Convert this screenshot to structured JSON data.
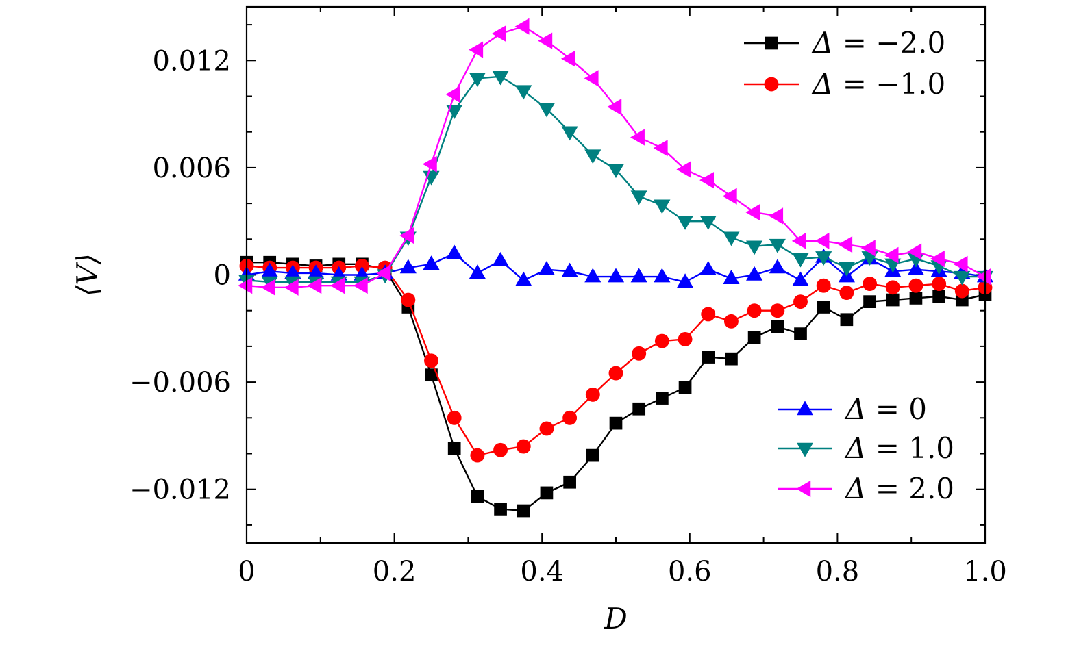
{
  "chart_data": {
    "type": "line",
    "title": "",
    "xlabel": "D",
    "ylabel": "⟨V⟩",
    "xlim": [
      0,
      1.0
    ],
    "ylim": [
      -0.015,
      0.015
    ],
    "xticks": [
      {
        "value": 0,
        "label": "0"
      },
      {
        "value": 0.2,
        "label": "0.2"
      },
      {
        "value": 0.4,
        "label": "0.4"
      },
      {
        "value": 0.6,
        "label": "0.6"
      },
      {
        "value": 0.8,
        "label": "0.8"
      },
      {
        "value": 1.0,
        "label": "1.0"
      }
    ],
    "yticks": [
      {
        "value": 0.012,
        "label": "0.012"
      },
      {
        "value": 0.006,
        "label": "0.006"
      },
      {
        "value": 0,
        "label": "0"
      },
      {
        "value": -0.006,
        "label": "−0.006"
      },
      {
        "value": -0.012,
        "label": "−0.012"
      }
    ],
    "grid": false,
    "legend_groups": [
      {
        "position": "top-right",
        "series": [
          0,
          1
        ]
      },
      {
        "position": "bottom-right",
        "series": [
          2,
          3,
          4
        ]
      }
    ],
    "x": [
      0,
      0.03125,
      0.0625,
      0.09375,
      0.125,
      0.15625,
      0.1875,
      0.21875,
      0.25,
      0.28125,
      0.3125,
      0.34375,
      0.375,
      0.40625,
      0.4375,
      0.46875,
      0.5,
      0.53125,
      0.5625,
      0.59375,
      0.625,
      0.65625,
      0.6875,
      0.71875,
      0.75,
      0.78125,
      0.8125,
      0.84375,
      0.875,
      0.90625,
      0.9375,
      0.96875,
      1.0
    ],
    "series": [
      {
        "name": "Δ = −2.0",
        "legend_sym": "Δ",
        "legend_eq": "= −2.0",
        "color": "#000000",
        "marker": "square",
        "values": [
          0.0007,
          0.0007,
          0.0006,
          0.0005,
          0.0006,
          0.0006,
          0.0003,
          -0.0018,
          -0.0056,
          -0.0097,
          -0.0124,
          -0.0131,
          -0.0132,
          -0.0122,
          -0.0116,
          -0.0101,
          -0.0083,
          -0.0075,
          -0.0069,
          -0.0063,
          -0.0046,
          -0.0047,
          -0.0035,
          -0.0029,
          -0.0033,
          -0.0018,
          -0.0025,
          -0.0015,
          -0.0014,
          -0.0013,
          -0.0012,
          -0.0014,
          -0.0011
        ]
      },
      {
        "name": "Δ = −1.0",
        "legend_sym": "Δ",
        "legend_eq": "= −1.0",
        "color": "#ff0000",
        "marker": "circle",
        "values": [
          0.0005,
          0.0004,
          0.0004,
          0.0004,
          0.0004,
          0.0005,
          0.0004,
          -0.0014,
          -0.0048,
          -0.008,
          -0.0101,
          -0.0098,
          -0.0096,
          -0.0086,
          -0.008,
          -0.0067,
          -0.0055,
          -0.0044,
          -0.0037,
          -0.0036,
          -0.0022,
          -0.0026,
          -0.002,
          -0.002,
          -0.0015,
          -0.0006,
          -0.001,
          -0.0005,
          -0.0007,
          -0.0006,
          -0.0005,
          -0.0009,
          -0.0007
        ]
      },
      {
        "name": "Δ = 0",
        "legend_sym": "Δ",
        "legend_eq": "= 0",
        "color": "#0000ff",
        "marker": "triangle-up",
        "values": [
          0.0,
          0.0002,
          0.0001,
          0.0001,
          0.0,
          0.0,
          0.0001,
          0.0004,
          0.0006,
          0.0012,
          0.0001,
          0.0008,
          -0.0003,
          0.0003,
          0.0002,
          -0.0001,
          -0.0001,
          -0.0001,
          -0.0001,
          -0.0004,
          0.0003,
          -0.0002,
          0.0,
          0.0004,
          -0.0003,
          0.001,
          -0.0001,
          0.0009,
          0.0002,
          0.0003,
          0.0002,
          0.0001,
          -0.0001
        ]
      },
      {
        "name": "Δ = 1.0",
        "legend_sym": "Δ",
        "legend_eq": "= 1.0",
        "color": "#008080",
        "marker": "triangle-down",
        "values": [
          -0.0003,
          -0.0004,
          -0.0004,
          -0.0004,
          -0.0004,
          -0.0004,
          0.0,
          0.0021,
          0.0055,
          0.0092,
          0.011,
          0.0111,
          0.0103,
          0.0093,
          0.008,
          0.0067,
          0.0059,
          0.0044,
          0.0039,
          0.003,
          0.003,
          0.0021,
          0.0016,
          0.0017,
          0.0009,
          0.001,
          0.0004,
          0.001,
          0.0006,
          0.0009,
          0.0005,
          -0.0001,
          -0.0001
        ]
      },
      {
        "name": "Δ = 2.0",
        "legend_sym": "Δ",
        "legend_eq": "= 2.0",
        "color": "#ff00ff",
        "marker": "triangle-left",
        "values": [
          -0.0006,
          -0.0007,
          -0.0007,
          -0.0006,
          -0.0006,
          -0.0006,
          0.0001,
          0.0022,
          0.0062,
          0.0101,
          0.0126,
          0.0135,
          0.0139,
          0.0131,
          0.0121,
          0.011,
          0.0094,
          0.0077,
          0.0071,
          0.0059,
          0.0053,
          0.0044,
          0.0035,
          0.0033,
          0.0019,
          0.0019,
          0.0017,
          0.0015,
          0.0011,
          0.0013,
          0.0009,
          0.0006,
          -0.0001
        ]
      }
    ]
  }
}
